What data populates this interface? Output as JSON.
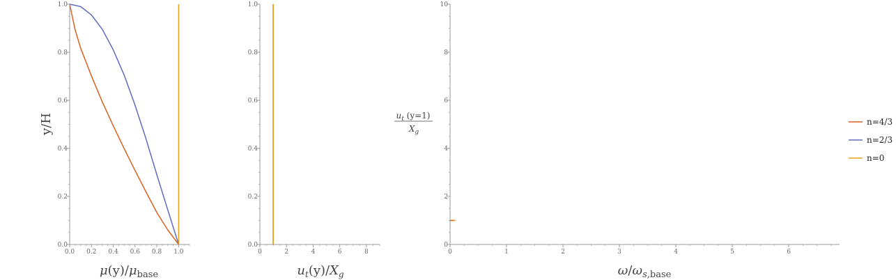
{
  "colors": {
    "n_4_3": "#D9601E",
    "n_2_3": "#5E6BBE",
    "n_0": "#E8A21A",
    "axis": "#999999",
    "label": "#666666"
  },
  "legend": {
    "position": "right",
    "items": [
      {
        "label": "n=4/3",
        "color_key": "n_4_3"
      },
      {
        "label": "n=2/3",
        "color_key": "n_2_3"
      },
      {
        "label": "n=0",
        "color_key": "n_0"
      }
    ]
  },
  "chart_data": [
    {
      "type": "line",
      "xlabel": "μ(y)/μbase",
      "ylabel": "y/H",
      "xlim": [
        0,
        1.1
      ],
      "ylim": [
        0,
        1.0
      ],
      "xticks": [
        "0.0",
        "0.2",
        "0.4",
        "0.6",
        "0.8",
        "1.0"
      ],
      "yticks": [
        "0.0",
        "0.2",
        "0.4",
        "0.6",
        "0.8",
        "1.0"
      ],
      "series": [
        {
          "name": "n=4/3",
          "color_key": "n_4_3",
          "x": [
            0,
            0.05,
            0.1,
            0.2,
            0.3,
            0.4,
            0.5,
            0.6,
            0.7,
            0.8,
            0.9,
            1.0
          ],
          "y": [
            1.0,
            0.894,
            0.818,
            0.701,
            0.593,
            0.494,
            0.399,
            0.308,
            0.219,
            0.133,
            0.061,
            0.0
          ]
        },
        {
          "name": "n=2/3",
          "color_key": "n_2_3",
          "x": [
            0,
            0.1,
            0.2,
            0.3,
            0.4,
            0.5,
            0.6,
            0.7,
            0.8,
            0.9,
            1.0
          ],
          "y": [
            1.0,
            0.99,
            0.955,
            0.895,
            0.81,
            0.705,
            0.58,
            0.44,
            0.29,
            0.145,
            0.0
          ]
        },
        {
          "name": "n=0",
          "color_key": "n_0",
          "x": [
            1.0,
            1.0
          ],
          "y": [
            0.0,
            1.0
          ]
        }
      ]
    },
    {
      "type": "line",
      "xlabel": "ut(y)/Xg",
      "ylabel": "",
      "xlim": [
        0,
        9
      ],
      "ylim": [
        0,
        1.0
      ],
      "xticks": [
        "0",
        "2",
        "4",
        "6",
        "8"
      ],
      "yticks": [
        "0.0",
        "0.2",
        "0.4",
        "0.6",
        "0.8",
        "1.0"
      ],
      "series": [
        {
          "name": "n=4/3",
          "color_key": "n_4_3",
          "x": [
            1.0,
            1.0
          ],
          "y": [
            0.0,
            1.0
          ]
        },
        {
          "name": "n=0",
          "color_key": "n_0",
          "x": [
            1.0,
            1.0
          ],
          "y": [
            0.0,
            1.0
          ]
        }
      ]
    },
    {
      "type": "line",
      "xlabel": "ω/ωs,base",
      "ylabel": "ut (y=1) / Xg",
      "xlim": [
        0,
        6.9
      ],
      "ylim": [
        0,
        10
      ],
      "xticks": [
        "0",
        "1",
        "2",
        "3",
        "4",
        "5",
        "6"
      ],
      "yticks": [
        "0",
        "2",
        "4",
        "6",
        "8",
        "10"
      ],
      "series": [
        {
          "name": "n=0",
          "color_key": "n_0",
          "x": [
            0.0,
            0.1
          ],
          "y": [
            1.0,
            1.0
          ]
        },
        {
          "name": "n=4/3",
          "color_key": "n_4_3",
          "x": [
            0.0,
            0.06
          ],
          "y": [
            1.0,
            1.0
          ]
        }
      ]
    }
  ]
}
